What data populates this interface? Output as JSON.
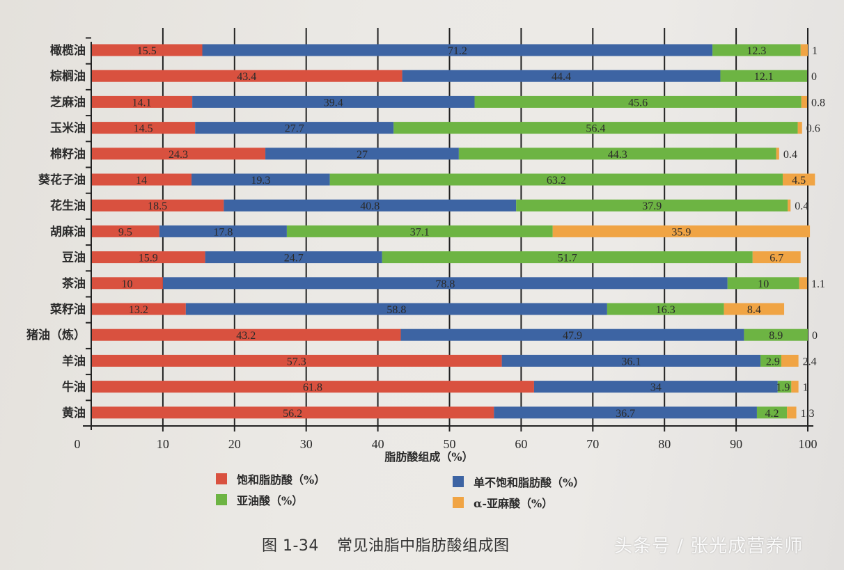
{
  "chart_data": {
    "type": "bar",
    "orientation": "horizontal",
    "stacked": true,
    "title": "",
    "xlabel": "脂肪酸组成（%）",
    "ylabel": "",
    "xlim": [
      0,
      100
    ],
    "xticks": [
      0,
      10,
      20,
      30,
      40,
      50,
      60,
      70,
      80,
      90,
      100
    ],
    "grid": "vertical",
    "legend_position": "bottom",
    "categories": [
      "橄榄油",
      "棕榈油",
      "芝麻油",
      "玉米油",
      "棉籽油",
      "葵花子油",
      "花生油",
      "胡麻油",
      "豆油",
      "茶油",
      "菜籽油",
      "猪油（炼）",
      "羊油",
      "牛油",
      "黄油"
    ],
    "series": [
      {
        "name": "饱和脂肪酸（%）",
        "color": "#d9513f",
        "values": [
          15.5,
          43.4,
          14.1,
          14.5,
          24.3,
          14,
          18.5,
          9.5,
          15.9,
          10,
          13.2,
          43.2,
          57.3,
          61.8,
          56.2
        ]
      },
      {
        "name": "单不饱和脂肪酸（%）",
        "color": "#3d64a3",
        "values": [
          71.2,
          44.4,
          39.4,
          27.7,
          27,
          19.3,
          40.8,
          17.8,
          24.7,
          78.8,
          58.8,
          47.9,
          36.1,
          34,
          36.7
        ]
      },
      {
        "name": "亚油酸（%）",
        "color": "#6db443",
        "values": [
          12.3,
          12.1,
          45.6,
          56.4,
          44.3,
          63.2,
          37.9,
          37.1,
          51.7,
          10,
          16.3,
          8.9,
          2.9,
          1.9,
          4.2
        ]
      },
      {
        "name": "α-亚麻酸（%）",
        "color": "#f0a444",
        "values": [
          1,
          0,
          0.8,
          0.6,
          0.4,
          4.5,
          0.4,
          35.9,
          6.7,
          1.1,
          8.4,
          0,
          2.4,
          1,
          1.3
        ]
      }
    ]
  },
  "legend": {
    "items": [
      {
        "label": "饱和脂肪酸（%）",
        "color": "#d9513f"
      },
      {
        "label": "单不饱和脂肪酸（%）",
        "color": "#3d64a3"
      },
      {
        "label": "亚油酸（%）",
        "color": "#6db443"
      },
      {
        "label": "α-亚麻酸（%）",
        "color": "#f0a444"
      }
    ]
  },
  "caption": {
    "number": "图 1-34",
    "text": "常见油脂中脂肪酸组成图"
  },
  "watermark": "头条号 / 张光成营养师"
}
